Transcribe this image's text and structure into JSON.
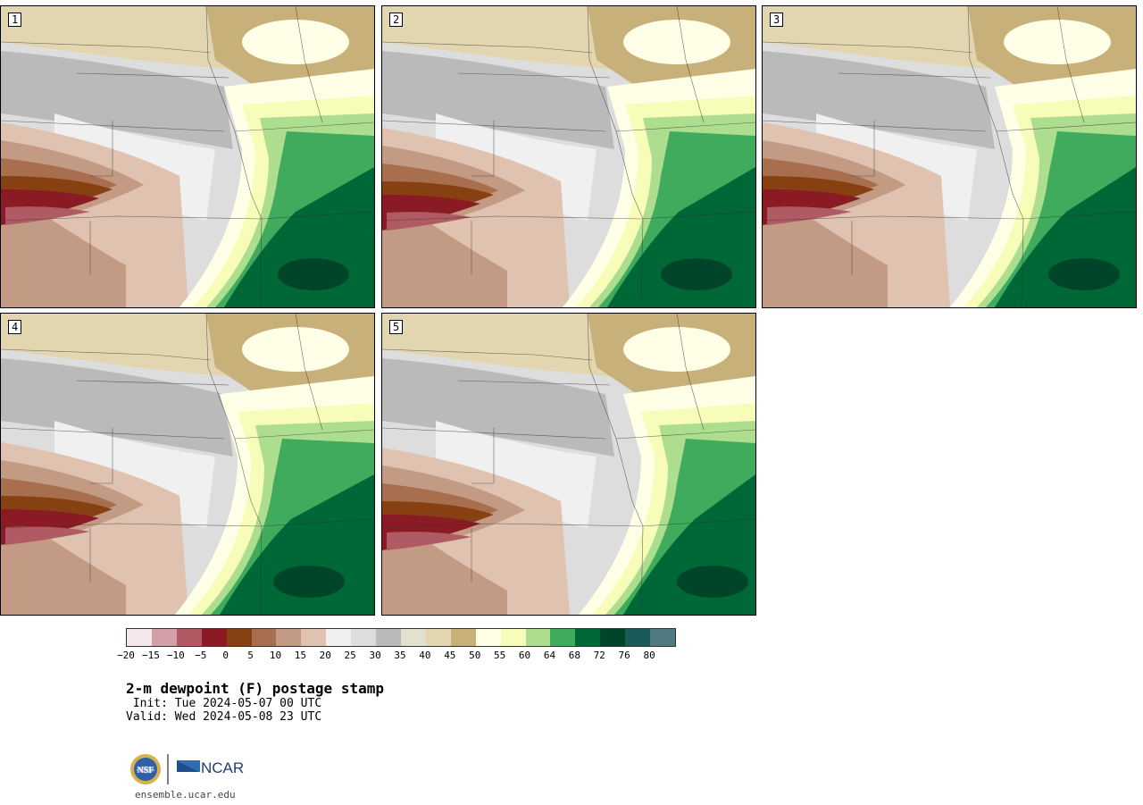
{
  "panels": [
    {
      "number": "1",
      "variant": 0
    },
    {
      "number": "2",
      "variant": 1
    },
    {
      "number": "3",
      "variant": 2
    },
    {
      "number": "4",
      "variant": 3
    },
    {
      "number": "5",
      "variant": 4
    }
  ],
  "colorbar": {
    "colors": [
      "#f5e6ea",
      "#d4a0a8",
      "#b05a63",
      "#8a1a24",
      "#864012",
      "#a86f4e",
      "#c39a84",
      "#dfc2b0",
      "#f0f0f0",
      "#dddddd",
      "#bababa",
      "#e2e0d0",
      "#e2d6b0",
      "#c8b07a",
      "#ffffe8",
      "#f7fcb9",
      "#addd8e",
      "#41ab5d",
      "#006837",
      "#00442a",
      "#1c5a5a",
      "#507a80"
    ],
    "tick_labels": [
      "−20",
      "−15",
      "−10",
      "−5",
      "0",
      "5",
      "10",
      "15",
      "20",
      "25",
      "30",
      "35",
      "40",
      "45",
      "50",
      "55",
      "60",
      "64",
      "68",
      "72",
      "76",
      "80"
    ]
  },
  "title": "2-m dewpoint (F) postage stamp",
  "init": " Init: Tue 2024-05-07 00 UTC",
  "valid": "Valid: Wed 2024-05-08 23 UTC",
  "logos": {
    "nsf": "NSF",
    "ncar": "NCAR"
  },
  "site": "ensemble.ucar.edu"
}
